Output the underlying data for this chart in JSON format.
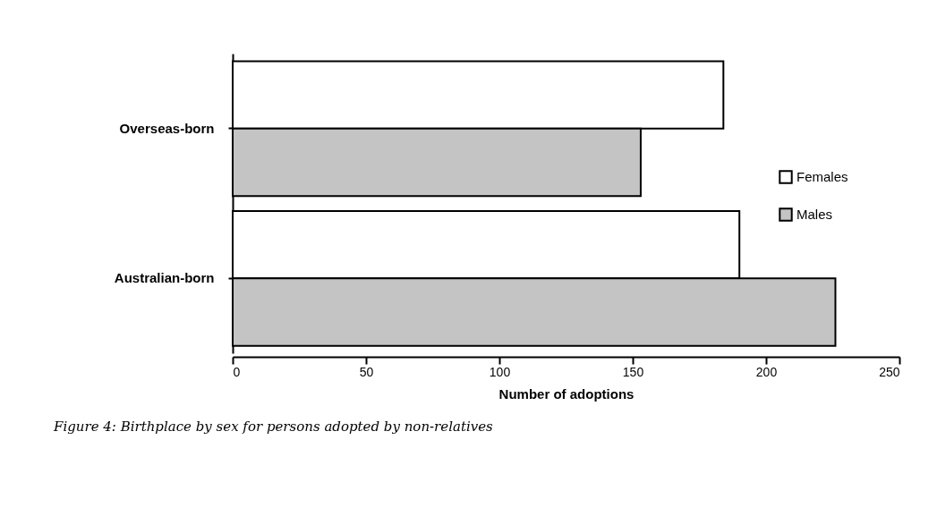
{
  "chart_data": {
    "type": "bar",
    "orientation": "horizontal",
    "title": "Figure 4: Birthplace by sex for persons adopted by non-relatives",
    "xlabel": "Number of adoptions",
    "categories": [
      "Overseas-born",
      "Australian-born"
    ],
    "series": [
      {
        "name": "Females",
        "color": "#ffffff",
        "values": [
          184,
          190
        ]
      },
      {
        "name": "Males",
        "color": "#c4c4c4",
        "values": [
          153,
          226
        ]
      }
    ],
    "xlim": [
      0,
      250
    ],
    "xticks": [
      0,
      50,
      100,
      150,
      200,
      250
    ],
    "grid": false,
    "legend": "right"
  }
}
